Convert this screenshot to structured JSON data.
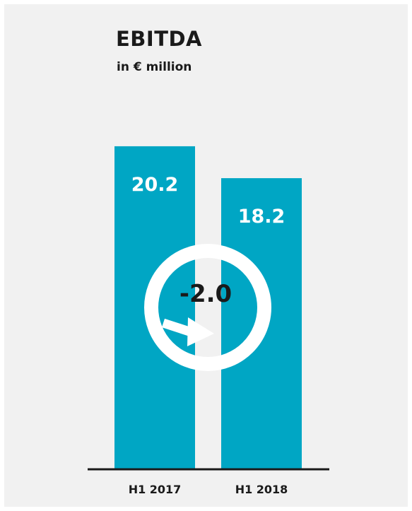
{
  "chart_data": {
    "type": "bar",
    "title": "EBITDA",
    "subtitle": "in € million",
    "categories": [
      "H1 2017",
      "H1 2018"
    ],
    "values": [
      20.2,
      18.2
    ],
    "value_labels": [
      "20.2",
      "18.2"
    ],
    "change_label": "-2.0",
    "ylim": [
      0,
      22.5
    ],
    "grid": false,
    "legend": "none",
    "colors": {
      "bar": "#00a6c4",
      "background": "#f1f1f1",
      "text": "#1a1a1a",
      "baseline": "#1a1a1a",
      "badge": "#ffffff"
    },
    "icons": [
      "down-right-arrow-icon"
    ]
  }
}
